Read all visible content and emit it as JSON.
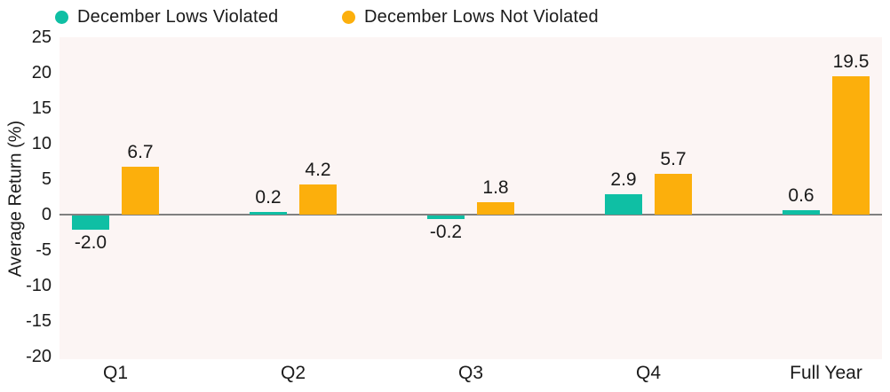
{
  "chart_data": {
    "type": "bar",
    "title": "",
    "categories": [
      "Q1",
      "Q2",
      "Q3",
      "Q4",
      "Full Year"
    ],
    "series": [
      {
        "name": "December Lows Violated",
        "color": "#0fbfa4",
        "values": [
          -2.0,
          0.2,
          -0.2,
          2.9,
          0.6
        ],
        "labels": [
          "-2.0",
          "0.2",
          "-0.2",
          "2.9",
          "0.6"
        ]
      },
      {
        "name": "December Lows Not Violated",
        "color": "#fcaf0c",
        "values": [
          6.7,
          4.2,
          1.8,
          5.7,
          19.5
        ],
        "labels": [
          "6.7",
          "4.2",
          "1.8",
          "5.7",
          "19.5"
        ]
      }
    ],
    "xlabel": "",
    "ylabel": "Average Return (%)",
    "ylim": [
      -20,
      25
    ],
    "yticks": [
      25,
      20,
      15,
      10,
      5,
      0,
      -5,
      -10,
      -15,
      -20
    ],
    "legend_position": "top",
    "grid": false,
    "plot_bg_color": "#fcf5f4",
    "zero_line_color": "#808080",
    "text_color": "#1a1a1a"
  }
}
